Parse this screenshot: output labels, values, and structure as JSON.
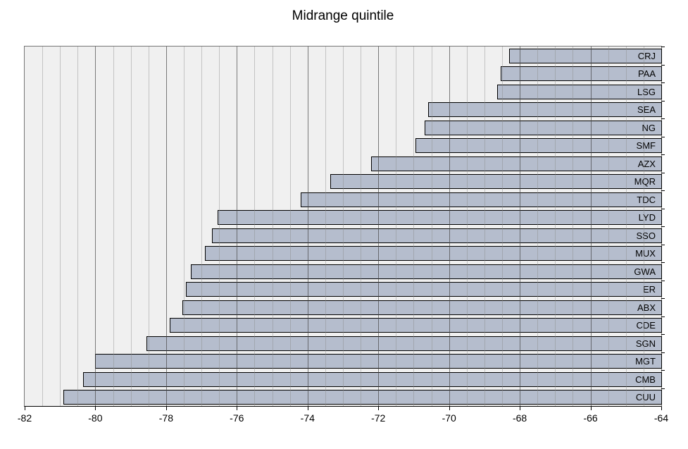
{
  "title": "Midrange quintile",
  "chart_data": {
    "type": "bar",
    "orientation": "horizontal",
    "title": "Midrange quintile",
    "categories": [
      "CRJ",
      "PAA",
      "LSG",
      "SEA",
      "NG",
      "SMF",
      "AZX",
      "MQR",
      "TDC",
      "LYD",
      "SSO",
      "MUX",
      "GWA",
      "ER",
      "ABX",
      "CDE",
      "SGN",
      "MGT",
      "CMB",
      "CUU"
    ],
    "values": [
      -68.3,
      -68.55,
      -68.65,
      -70.6,
      -70.7,
      -70.95,
      -72.2,
      -73.35,
      -74.2,
      -76.55,
      -76.7,
      -76.9,
      -77.3,
      -77.45,
      -77.55,
      -77.9,
      -78.55,
      -80.0,
      -80.35,
      -80.9
    ],
    "bar_anchor": -64,
    "xlim": [
      -82,
      -64
    ],
    "x_tick_values": [
      -82,
      -80,
      -78,
      -76,
      -74,
      -72,
      -70,
      -68,
      -66,
      -64
    ],
    "x_tick_labels": [
      "-82",
      "-80",
      "-78",
      "-76",
      "-74",
      "-72",
      "-70",
      "-68",
      "-66",
      "-64"
    ],
    "minor_grid_step": 0.5,
    "grid": "vertical, minor and major",
    "legend": false,
    "xlabel": "",
    "ylabel": "",
    "colors": {
      "bar_fill": "#b5bdcd",
      "bar_border": "#000000",
      "plot_background": "#f0f0f0",
      "minor_gridline": "#c6c6c6",
      "major_gridline": "#7a7a7a",
      "plot_border": "#767676",
      "axis_line": "#000000",
      "text": "#000000"
    }
  }
}
